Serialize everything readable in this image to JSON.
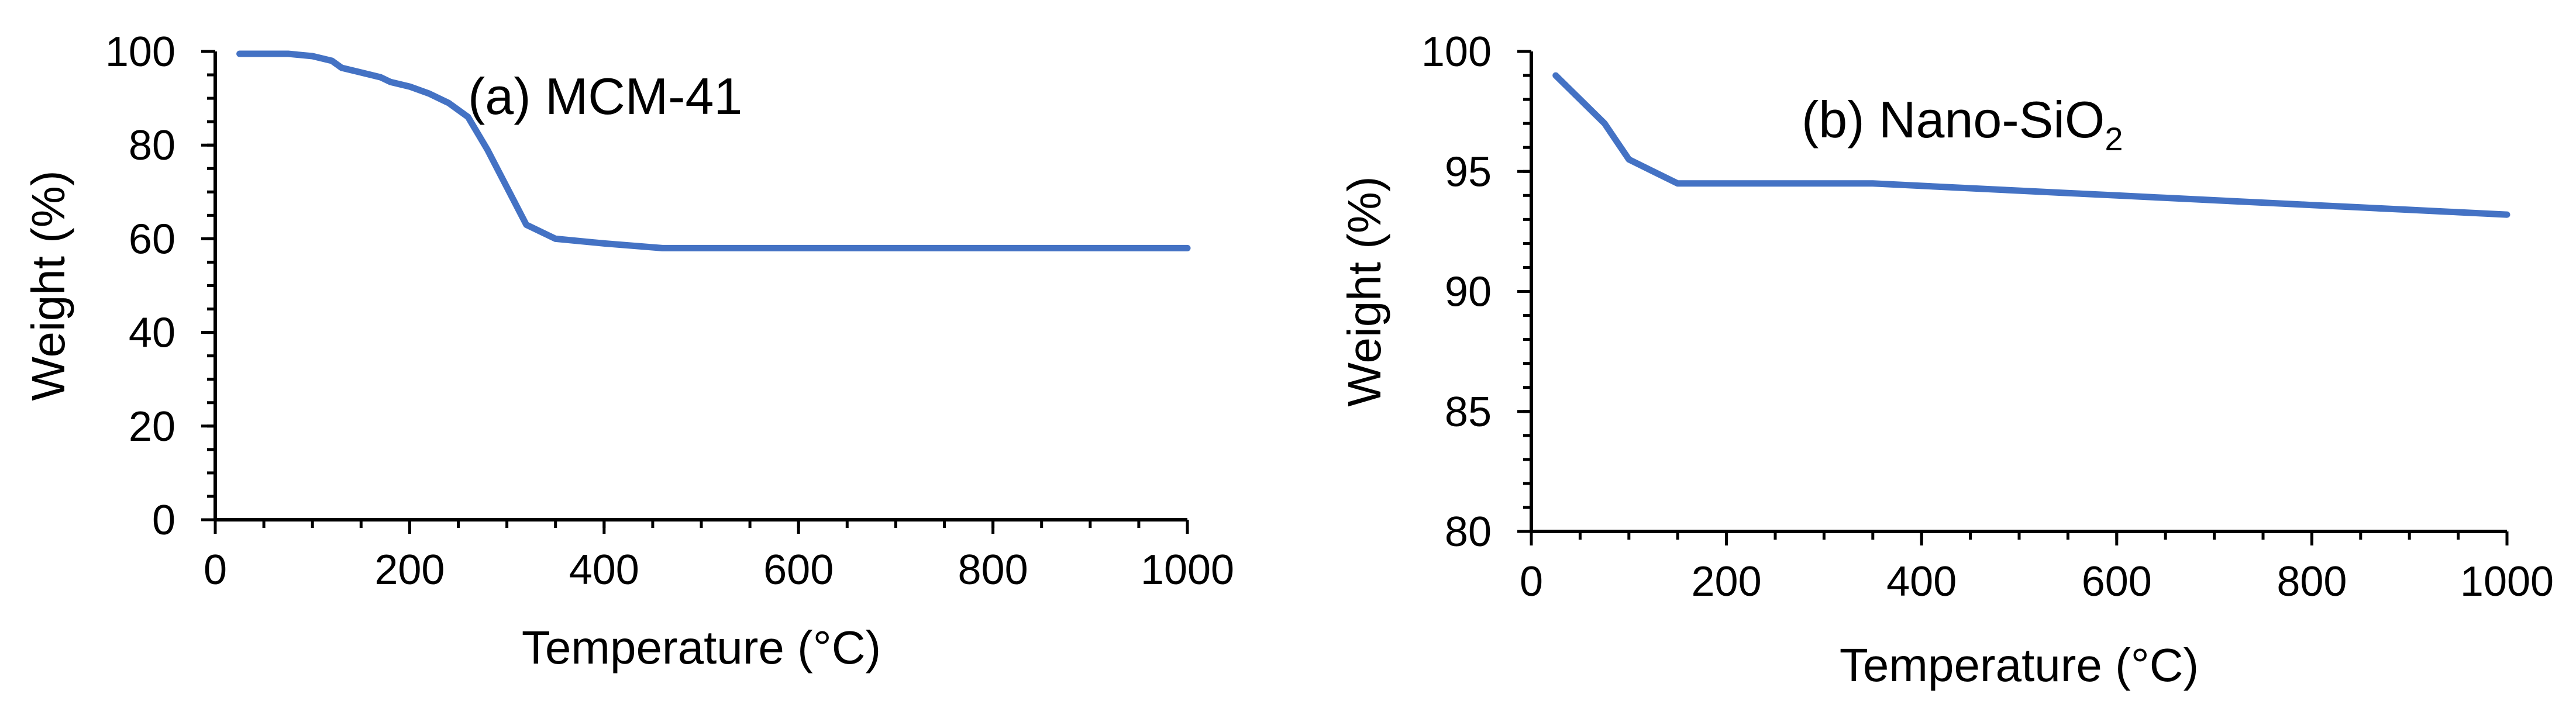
{
  "chart_data": [
    {
      "type": "line",
      "title": "(a) MCM-41",
      "title_main": "(a) MCM-41",
      "title_sub": "",
      "title_after": "",
      "xlabel": "Temperature (°C)",
      "ylabel": "Weight (%)",
      "xlim": [
        0,
        1000
      ],
      "ylim": [
        0,
        100
      ],
      "xticks": [
        0,
        200,
        400,
        600,
        800,
        1000
      ],
      "yticks": [
        0,
        20,
        40,
        60,
        80,
        100
      ],
      "x_minor_step": 50,
      "y_minor_step": 5,
      "grid": false,
      "line_color": "#4472C4",
      "series": [
        {
          "x": [
            25,
            50,
            75,
            100,
            120,
            130,
            150,
            170,
            180,
            200,
            220,
            240,
            260,
            280,
            300,
            320,
            350,
            400,
            460,
            500,
            600,
            700,
            800,
            900,
            1000
          ],
          "y": [
            99.5,
            99.5,
            99.5,
            99,
            98,
            96.5,
            95.5,
            94.5,
            93.5,
            92.5,
            91,
            89,
            86,
            79,
            71,
            63,
            60,
            59,
            58,
            58,
            58,
            58,
            58,
            58,
            58
          ]
        }
      ]
    },
    {
      "type": "line",
      "title": "(b) Nano-SiO2",
      "title_main": "(b) Nano-SiO",
      "title_sub": "2",
      "title_after": "",
      "xlabel": "Temperature (°C)",
      "ylabel": "Weight (%)",
      "xlim": [
        0,
        1000
      ],
      "ylim": [
        80,
        100
      ],
      "xticks": [
        0,
        200,
        400,
        600,
        800,
        1000
      ],
      "yticks": [
        80,
        85,
        90,
        95,
        100
      ],
      "x_minor_step": 50,
      "y_minor_step": 1,
      "grid": false,
      "line_color": "#4472C4",
      "series": [
        {
          "x": [
            25,
            50,
            75,
            100,
            125,
            150,
            200,
            250,
            300,
            350,
            400,
            450,
            500,
            550,
            600,
            650,
            700,
            750,
            800,
            850,
            900,
            950,
            1000
          ],
          "y": [
            99,
            98,
            97,
            95.5,
            95,
            94.5,
            94.5,
            94.5,
            94.5,
            94.5,
            94.4,
            94.3,
            94.2,
            94.1,
            94.0,
            93.9,
            93.8,
            93.7,
            93.6,
            93.5,
            93.4,
            93.3,
            93.2
          ]
        }
      ]
    }
  ]
}
